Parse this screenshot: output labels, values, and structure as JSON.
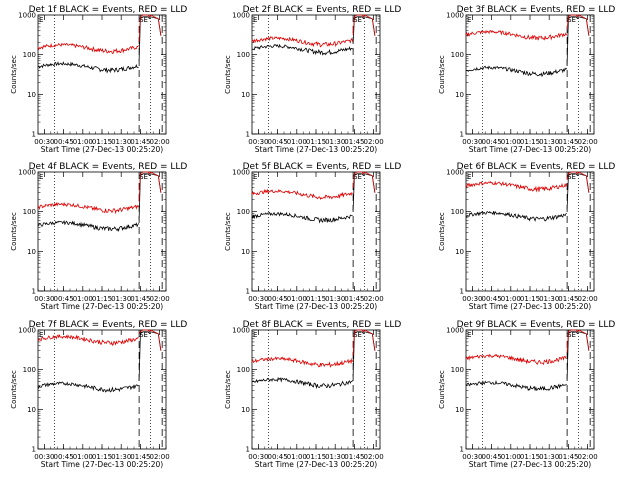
{
  "colors": {
    "events": "#000000",
    "lld": "#dd0000",
    "axis": "#000000",
    "background": "#ffffff"
  },
  "shared": {
    "xlabel": "Start Time (27-Dec-13 00:25:20)",
    "ylabel": "Counts/sec",
    "x_ticks": [
      "00:30",
      "00:45",
      "01:00",
      "01:15",
      "01:30",
      "01:45",
      "02:00"
    ],
    "y_ticks": [
      "1",
      "10",
      "100",
      "1000"
    ],
    "marker_left": "E",
    "marker_right": "SE"
  },
  "chart_data": [
    {
      "type": "line",
      "title": "Det 1f BLACK = Events, RED = LLD",
      "ylim": [
        1,
        1000
      ],
      "yscale": "log",
      "xlim": [
        "00:25",
        "02:05"
      ],
      "grid": false,
      "series": [
        {
          "name": "Events",
          "color": "black",
          "level": 50
        },
        {
          "name": "LLD",
          "color": "red",
          "level": 150
        }
      ]
    },
    {
      "type": "line",
      "title": "Det 2f BLACK = Events, RED = LLD",
      "ylim": [
        1,
        1000
      ],
      "yscale": "log",
      "xlim": [
        "00:25",
        "02:05"
      ],
      "grid": false,
      "series": [
        {
          "name": "Events",
          "color": "black",
          "level": 140
        },
        {
          "name": "LLD",
          "color": "red",
          "level": 220
        }
      ]
    },
    {
      "type": "line",
      "title": "Det 3f BLACK = Events, RED = LLD",
      "ylim": [
        1,
        1000
      ],
      "yscale": "log",
      "xlim": [
        "00:25",
        "02:05"
      ],
      "grid": false,
      "series": [
        {
          "name": "Events",
          "color": "black",
          "level": 40
        },
        {
          "name": "LLD",
          "color": "red",
          "level": 320
        }
      ]
    },
    {
      "type": "line",
      "title": "Det 4f BLACK = Events, RED = LLD",
      "ylim": [
        1,
        1000
      ],
      "yscale": "log",
      "xlim": [
        "00:25",
        "02:05"
      ],
      "grid": false,
      "series": [
        {
          "name": "Events",
          "color": "black",
          "level": 45
        },
        {
          "name": "LLD",
          "color": "red",
          "level": 130
        }
      ]
    },
    {
      "type": "line",
      "title": "Det 5f BLACK = Events, RED = LLD",
      "ylim": [
        1,
        1000
      ],
      "yscale": "log",
      "xlim": [
        "00:25",
        "02:05"
      ],
      "grid": false,
      "series": [
        {
          "name": "Events",
          "color": "black",
          "level": 75
        },
        {
          "name": "LLD",
          "color": "red",
          "level": 280
        }
      ]
    },
    {
      "type": "line",
      "title": "Det 6f BLACK = Events, RED = LLD",
      "ylim": [
        1,
        1000
      ],
      "yscale": "log",
      "xlim": [
        "00:25",
        "02:05"
      ],
      "grid": false,
      "series": [
        {
          "name": "Events",
          "color": "black",
          "level": 80
        },
        {
          "name": "LLD",
          "color": "red",
          "level": 450
        }
      ]
    },
    {
      "type": "line",
      "title": "Det 7f BLACK = Events, RED = LLD",
      "ylim": [
        1,
        1000
      ],
      "yscale": "log",
      "xlim": [
        "00:25",
        "02:05"
      ],
      "grid": false,
      "series": [
        {
          "name": "Events",
          "color": "black",
          "level": 38
        },
        {
          "name": "LLD",
          "color": "red",
          "level": 580
        }
      ]
    },
    {
      "type": "line",
      "title": "Det 8f BLACK = Events, RED = LLD",
      "ylim": [
        1,
        1000
      ],
      "yscale": "log",
      "xlim": [
        "00:25",
        "02:05"
      ],
      "grid": false,
      "series": [
        {
          "name": "Events",
          "color": "black",
          "level": 48
        },
        {
          "name": "LLD",
          "color": "red",
          "level": 160
        }
      ]
    },
    {
      "type": "line",
      "title": "Det 9f BLACK = Events, RED = LLD",
      "ylim": [
        1,
        1000
      ],
      "yscale": "log",
      "xlim": [
        "00:25",
        "02:05"
      ],
      "grid": false,
      "series": [
        {
          "name": "Events",
          "color": "black",
          "level": 40
        },
        {
          "name": "LLD",
          "color": "red",
          "level": 190
        }
      ]
    }
  ]
}
